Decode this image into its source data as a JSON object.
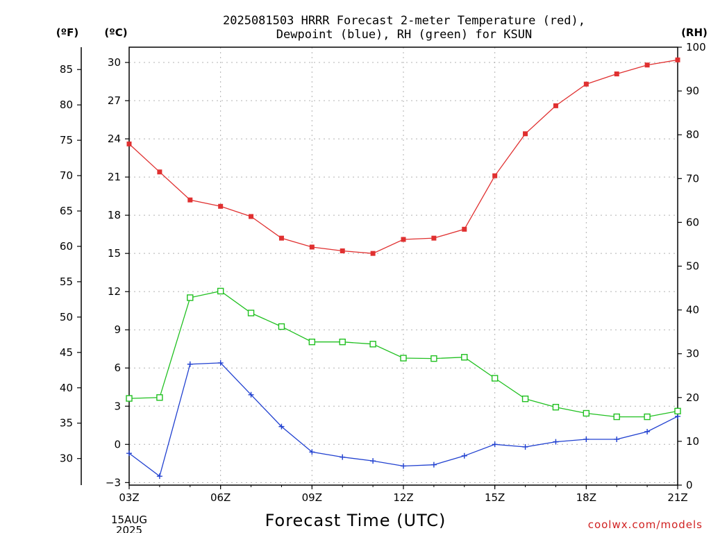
{
  "chart_data": {
    "type": "line",
    "title_lines": [
      "2025081503 HRRR Forecast 2-meter Temperature (red),",
      "Dewpoint (blue), RH (green) for KSUN"
    ],
    "xlabel": "Forecast Time (UTC)",
    "credit": "coolwx.com/models",
    "units": {
      "fahrenheit": "(ºF)",
      "celsius": "(ºC)",
      "rh": "(RH)"
    },
    "x_hours": [
      3,
      4,
      5,
      6,
      7,
      8,
      9,
      10,
      11,
      12,
      13,
      14,
      15,
      16,
      17,
      18,
      19,
      20,
      21
    ],
    "x_ticks": [
      {
        "hour": 3,
        "label": "03Z"
      },
      {
        "hour": 6,
        "label": "06Z"
      },
      {
        "hour": 9,
        "label": "09Z"
      },
      {
        "hour": 12,
        "label": "12Z"
      },
      {
        "hour": 15,
        "label": "15Z"
      },
      {
        "hour": 18,
        "label": "18Z"
      },
      {
        "hour": 21,
        "label": "21Z"
      }
    ],
    "x_date_lines": [
      "15AUG",
      "2025"
    ],
    "xlim": [
      3,
      21
    ],
    "celsius_axis": {
      "ylim": [
        -3.2,
        31.2
      ],
      "ticks": [
        -3,
        0,
        3,
        6,
        9,
        12,
        15,
        18,
        21,
        24,
        27,
        30
      ],
      "labels": [
        "−3",
        "0",
        "3",
        "6",
        "9",
        "12",
        "15",
        "18",
        "21",
        "24",
        "27",
        "30"
      ]
    },
    "fahrenheit_axis": {
      "ticks": [
        30,
        35,
        40,
        45,
        50,
        55,
        60,
        65,
        70,
        75,
        80,
        85
      ],
      "labels": [
        "30",
        "35",
        "40",
        "45",
        "50",
        "55",
        "60",
        "65",
        "70",
        "75",
        "80",
        "85"
      ]
    },
    "rh_axis": {
      "ylim": [
        0,
        100
      ],
      "ticks": [
        0,
        10,
        20,
        30,
        40,
        50,
        60,
        70,
        80,
        90,
        100
      ],
      "labels": [
        "0",
        "10",
        "20",
        "30",
        "40",
        "50",
        "60",
        "70",
        "80",
        "90",
        "100"
      ]
    },
    "grid": true,
    "series": [
      {
        "key": "temperature",
        "axis": "celsius",
        "color": "#e03030",
        "marker": "filled-square",
        "values": [
          23.6,
          21.4,
          19.2,
          18.7,
          17.9,
          16.2,
          15.5,
          15.2,
          15.0,
          16.1,
          16.2,
          16.9,
          21.1,
          24.4,
          26.6,
          28.3,
          29.1,
          29.8,
          30.2
        ]
      },
      {
        "key": "dewpoint",
        "axis": "celsius",
        "color": "#2040d0",
        "marker": "plus",
        "values": [
          -0.7,
          -2.5,
          6.3,
          6.4,
          3.9,
          1.4,
          -0.6,
          -1.0,
          -1.3,
          -1.7,
          -1.6,
          -0.9,
          0.0,
          -0.2,
          0.2,
          0.4,
          0.4,
          1.0,
          2.2
        ]
      },
      {
        "key": "rh",
        "axis": "rh",
        "color": "#20c020",
        "marker": "open-square",
        "values": [
          19.8,
          20.0,
          42.8,
          44.3,
          39.3,
          36.2,
          32.7,
          32.7,
          32.2,
          29.0,
          28.9,
          29.2,
          24.4,
          19.7,
          17.8,
          16.4,
          15.6,
          15.6,
          16.9
        ]
      }
    ]
  }
}
